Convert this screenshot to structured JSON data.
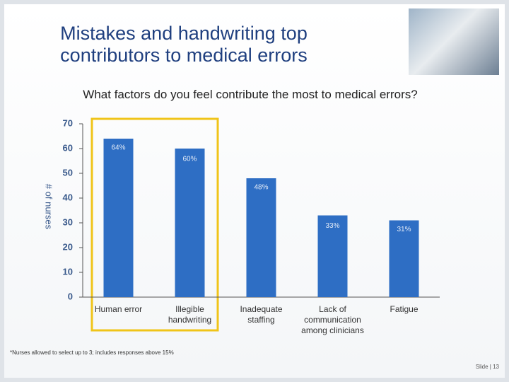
{
  "title": "Mistakes and handwriting top contributors to medical errors",
  "chart_data": {
    "type": "bar",
    "title": "What factors do you feel contribute the most to medical errors?",
    "y_label": "# of nurses",
    "categories": [
      "Human error",
      "Illegible handwriting",
      "Inadequate staffing",
      "Lack of communication among clinicians",
      "Fatigue"
    ],
    "values": [
      64,
      60,
      48,
      33,
      31
    ],
    "value_labels": [
      "64%",
      "60%",
      "48%",
      "33%",
      "31%"
    ],
    "color": "#2e6ec4",
    "ylim": [
      0,
      70
    ],
    "yticks": [
      0,
      10,
      20,
      30,
      40,
      50,
      60,
      70
    ],
    "note": "*Nurses allowed to select up to 3; includes responses above 15%"
  },
  "footer": "Slide | 13"
}
